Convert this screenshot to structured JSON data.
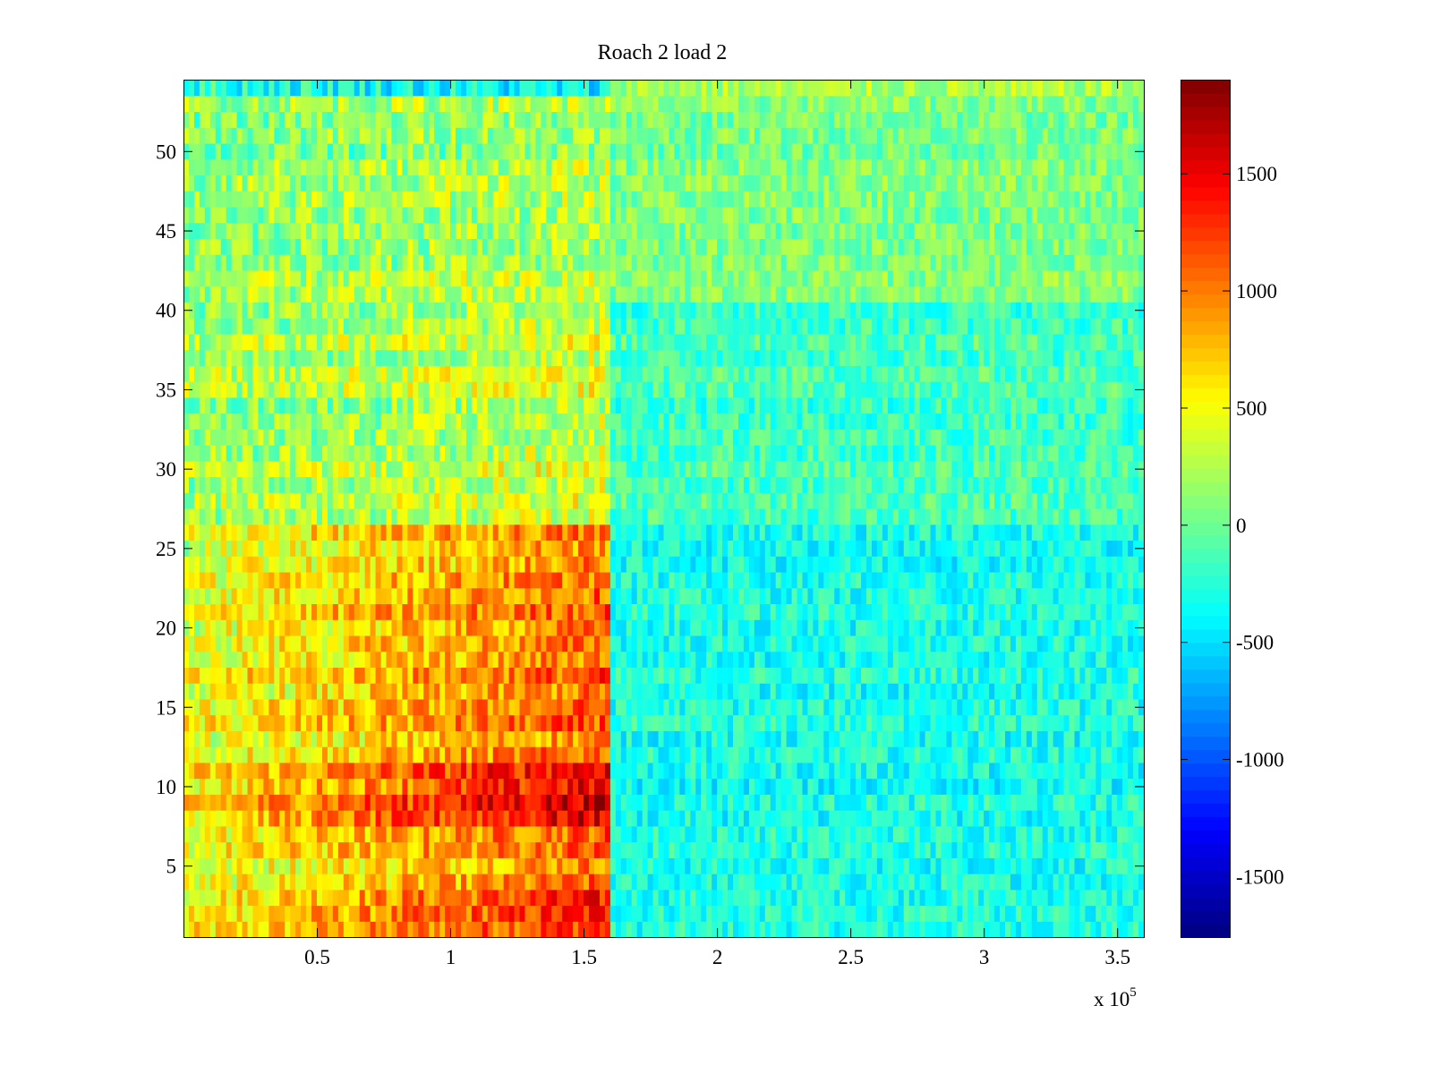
{
  "chart_data": {
    "type": "heatmap",
    "title": "Roach 2 load 2",
    "xlabel": "",
    "ylabel": "",
    "x_range": [
      0,
      360000
    ],
    "y_range": [
      0.5,
      54.5
    ],
    "rows": 54,
    "x_ticks": [
      50000,
      100000,
      150000,
      200000,
      250000,
      300000,
      350000
    ],
    "x_tick_labels": [
      "0.5",
      "1",
      "1.5",
      "2",
      "2.5",
      "3",
      "3.5"
    ],
    "x_exponent_label": {
      "base": "x 10",
      "exponent": "5"
    },
    "y_ticks": [
      5,
      10,
      15,
      20,
      25,
      30,
      35,
      40,
      45,
      50
    ],
    "y_tick_labels": [
      "5",
      "10",
      "15",
      "20",
      "25",
      "30",
      "35",
      "40",
      "45",
      "50"
    ],
    "split_x": 160000,
    "colormap": "jet",
    "clim": [
      -1760,
      1900
    ],
    "colorbar": {
      "ticks": [
        -1500,
        -1000,
        -500,
        0,
        500,
        1000,
        1500
      ],
      "tick_labels": [
        "-1500",
        "-1000",
        "-500",
        "0",
        "500",
        "1000",
        "1500"
      ]
    },
    "row_groups": [
      {
        "rows": [
          1,
          3
        ],
        "left_mean": 900,
        "right_mean": -300
      },
      {
        "rows": [
          4,
          7
        ],
        "left_mean": 750,
        "right_mean": -300
      },
      {
        "rows": [
          8,
          11
        ],
        "left_mean": 1100,
        "right_mean": -330
      },
      {
        "rows": [
          12,
          26
        ],
        "left_mean": 750,
        "right_mean": -300
      },
      {
        "rows": [
          27,
          40
        ],
        "left_mean": 250,
        "right_mean": -150
      },
      {
        "rows": [
          41,
          53
        ],
        "left_mean": 150,
        "right_mean": 50
      },
      {
        "rows": [
          54,
          54
        ],
        "left_mean": -250,
        "right_mean": 250
      }
    ],
    "grid": false,
    "legend": "colorbar-right"
  }
}
